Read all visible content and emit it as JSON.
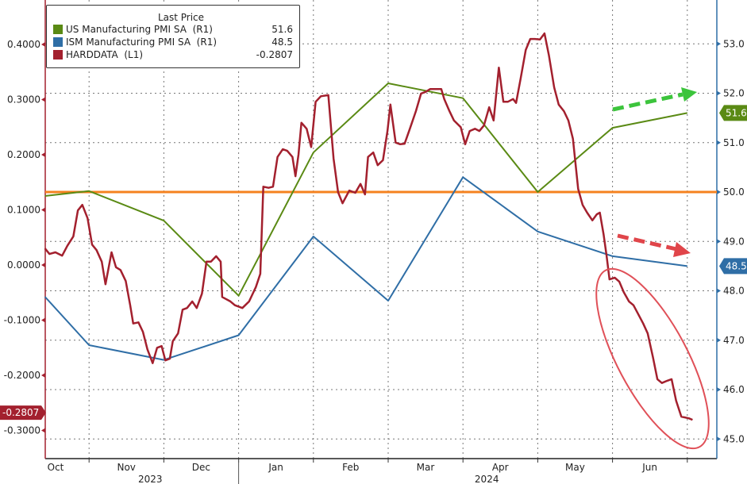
{
  "chart_data": {
    "type": "line",
    "legend": {
      "title": "Last Price",
      "placement": "top-left"
    },
    "x_unit": "months since 2023-10-01",
    "x_ticks": [
      {
        "label": "Oct",
        "m": 0
      },
      {
        "label": "Nov",
        "m": 1
      },
      {
        "label": "Dec",
        "m": 2
      },
      {
        "label": "Jan",
        "m": 3
      },
      {
        "label": "Feb",
        "m": 4
      },
      {
        "label": "Mar",
        "m": 5
      },
      {
        "label": "Apr",
        "m": 6
      },
      {
        "label": "May",
        "m": 7
      },
      {
        "label": "Jun",
        "m": 8
      }
    ],
    "year_labels": [
      {
        "label": "2023",
        "m": 1.5
      },
      {
        "label": "2024",
        "m": 6.0
      }
    ],
    "left_axis": {
      "ylim": [
        -0.33,
        0.48
      ],
      "ticks": [
        "0.4000",
        "0.3000",
        "0.2000",
        "0.1000",
        "0.0000",
        "-0.1000",
        "-0.2000",
        "-0.3000"
      ]
    },
    "right_axis": {
      "ylim": [
        44.6,
        56.0
      ],
      "ticks": [
        "53.0",
        "52.0",
        "51.0",
        "50.0",
        "49.0",
        "48.0",
        "47.0",
        "46.0",
        "45.0"
      ]
    },
    "reference_line": {
      "axis": "right",
      "value": 50.0,
      "color": "#f5821f"
    },
    "series": [
      {
        "name": "US Manufacturing PMI SA",
        "axis_label": "(R1)",
        "last": "51.6",
        "axis": "right",
        "color": "#5a8a14",
        "x": [
          0.41,
          1,
          2,
          3,
          4,
          5,
          6,
          7,
          8,
          9
        ],
        "y": [
          49.92,
          50.02,
          49.42,
          47.9,
          50.8,
          52.2,
          51.9,
          50.0,
          51.3,
          51.6
        ]
      },
      {
        "name": "ISM Manufacturing PMI SA",
        "axis_label": "(R1)",
        "last": "48.5",
        "axis": "right",
        "color": "#2f6ea6",
        "x": [
          0.41,
          1,
          2,
          3,
          4,
          5,
          6,
          7,
          8,
          9
        ],
        "y": [
          47.88,
          46.9,
          46.6,
          47.1,
          49.1,
          47.8,
          50.3,
          49.2,
          48.7,
          48.5
        ]
      },
      {
        "name": "HARDDATA",
        "axis_label": "(L1)",
        "last": "-0.2807",
        "axis": "left",
        "color": "#a3202e",
        "x": [
          0.41,
          0.47,
          0.55,
          0.64,
          0.71,
          0.79,
          0.85,
          0.91,
          0.98,
          1.04,
          1.1,
          1.17,
          1.22,
          1.3,
          1.36,
          1.42,
          1.49,
          1.55,
          1.59,
          1.66,
          1.72,
          1.78,
          1.85,
          1.91,
          1.97,
          2.02,
          2.08,
          2.12,
          2.19,
          2.25,
          2.31,
          2.38,
          2.44,
          2.51,
          2.57,
          2.63,
          2.7,
          2.76,
          2.78,
          2.89,
          2.95,
          3.05,
          3.14,
          3.23,
          3.29,
          3.33,
          3.4,
          3.46,
          3.52,
          3.59,
          3.65,
          3.72,
          3.76,
          3.8,
          3.84,
          3.91,
          3.97,
          4.03,
          4.1,
          4.2,
          4.27,
          4.33,
          4.39,
          4.48,
          4.56,
          4.63,
          4.69,
          4.73,
          4.8,
          4.86,
          4.93,
          4.99,
          5.03,
          5.1,
          5.16,
          5.22,
          5.29,
          5.37,
          5.44,
          5.5,
          5.56,
          5.63,
          5.71,
          5.75,
          5.82,
          5.88,
          5.97,
          6.03,
          6.09,
          6.16,
          6.22,
          6.28,
          6.35,
          6.41,
          6.48,
          6.54,
          6.6,
          6.67,
          6.71,
          6.77,
          6.84,
          6.9,
          6.96,
          7.03,
          7.09,
          7.15,
          7.22,
          7.28,
          7.35,
          7.41,
          7.47,
          7.54,
          7.6,
          7.66,
          7.73,
          7.79,
          7.83,
          7.88,
          7.92,
          7.96,
          8.03,
          8.09,
          8.15,
          8.22,
          8.28,
          8.34,
          8.41,
          8.47,
          8.54,
          8.6,
          8.66,
          8.73,
          8.79,
          8.85,
          8.92,
          9.02,
          9.07
        ],
        "y": [
          0.03,
          0.02,
          0.023,
          0.017,
          0.035,
          0.052,
          0.099,
          0.109,
          0.085,
          0.037,
          0.027,
          0.006,
          -0.035,
          0.023,
          -0.004,
          -0.009,
          -0.029,
          -0.073,
          -0.106,
          -0.104,
          -0.121,
          -0.153,
          -0.178,
          -0.15,
          -0.147,
          -0.173,
          -0.17,
          -0.138,
          -0.124,
          -0.081,
          -0.078,
          -0.066,
          -0.078,
          -0.052,
          0.006,
          0.006,
          0.016,
          0.006,
          -0.058,
          -0.066,
          -0.073,
          -0.078,
          -0.066,
          -0.04,
          -0.016,
          0.142,
          0.14,
          0.142,
          0.196,
          0.21,
          0.207,
          0.196,
          0.161,
          0.2,
          0.258,
          0.247,
          0.214,
          0.296,
          0.306,
          0.308,
          0.193,
          0.132,
          0.112,
          0.135,
          0.131,
          0.147,
          0.128,
          0.196,
          0.204,
          0.181,
          0.19,
          0.243,
          0.291,
          0.222,
          0.219,
          0.22,
          0.247,
          0.279,
          0.311,
          0.314,
          0.319,
          0.319,
          0.319,
          0.301,
          0.279,
          0.262,
          0.25,
          0.219,
          0.243,
          0.247,
          0.243,
          0.253,
          0.286,
          0.262,
          0.358,
          0.296,
          0.296,
          0.301,
          0.294,
          0.337,
          0.39,
          0.41,
          0.41,
          0.409,
          0.42,
          0.38,
          0.322,
          0.291,
          0.279,
          0.262,
          0.229,
          0.138,
          0.109,
          0.095,
          0.081,
          0.092,
          0.095,
          0.056,
          0.017,
          -0.026,
          -0.023,
          -0.03,
          -0.049,
          -0.066,
          -0.073,
          -0.088,
          -0.106,
          -0.124,
          -0.167,
          -0.207,
          -0.214,
          -0.21,
          -0.207,
          -0.246,
          -0.275,
          -0.278,
          -0.2807
        ]
      }
    ]
  }
}
